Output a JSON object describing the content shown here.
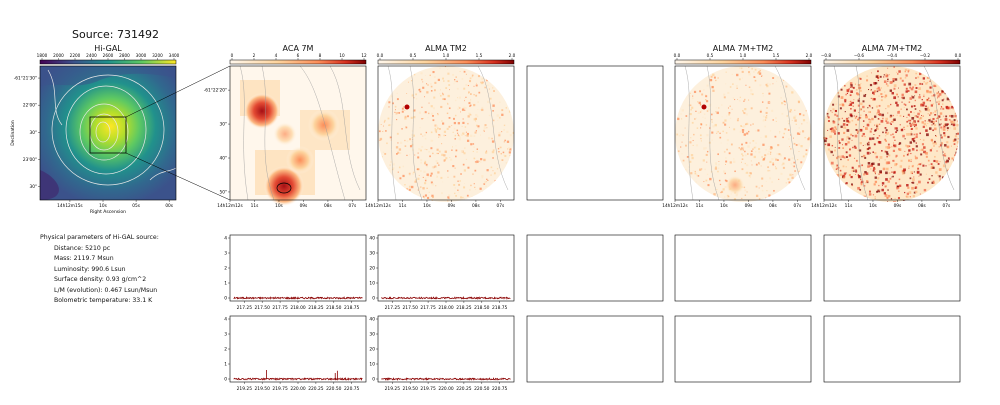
{
  "title": "Source: 731492",
  "panels": {
    "higal": {
      "title": "Hi-GAL",
      "colorbar_ticks": [
        "1800",
        "2000",
        "2200",
        "2400",
        "2600",
        "2800",
        "3000",
        "3200",
        "3400"
      ],
      "xlabel": "Right Ascension",
      "ylabel": "Declination",
      "x_ticks": [
        "14h12m15s",
        "10s",
        "05s",
        "00s"
      ],
      "y_ticks": [
        "-61°21'30\"",
        "22'00\"",
        "30\"",
        "23'00\"",
        "30\""
      ]
    },
    "aca7m": {
      "title": "ACA 7M",
      "colorbar_ticks": [
        "0",
        "2",
        "4",
        "6",
        "8",
        "10",
        "12"
      ],
      "x_ticks": [
        "14h12m12s",
        "11s",
        "10s",
        "09s",
        "08s",
        "07s"
      ],
      "y_ticks": [
        "-61°22'20\"",
        "30\"",
        "40\"",
        "50\""
      ]
    },
    "almatm2": {
      "title": "ALMA TM2",
      "colorbar_ticks": [
        "0.0",
        "0.5",
        "1.0",
        "1.5",
        "2.0"
      ],
      "x_ticks": [
        "14h12m12s",
        "11s",
        "10s",
        "09s",
        "08s",
        "07s"
      ]
    },
    "alma7mtm2": {
      "title": "ALMA 7M+TM2",
      "colorbar_ticks": [
        "0.0",
        "0.5",
        "1.0",
        "1.5",
        "2.0"
      ],
      "x_ticks": [
        "14h12m12s",
        "11s",
        "10s",
        "09s",
        "08s",
        "07s"
      ]
    },
    "alma7mtm2b": {
      "title": "ALMA 7M+TM2",
      "colorbar_ticks": [
        "−0.8",
        "−0.6",
        "−0.4",
        "−0.2",
        "0.0"
      ],
      "x_ticks": [
        "14h12m12s",
        "11s",
        "10s",
        "09s",
        "08s",
        "07s"
      ]
    }
  },
  "params": {
    "heading": "Physical parameters of Hi-GAL source:",
    "lines": [
      "Distance: 5210 pc",
      "Mass: 2119.7 Msun",
      "Luminosity: 990.6 Lsun",
      "Surface density: 0.93 g/cm^2",
      "L/M (evolution): 0.467 Lsun/Msun",
      "Bolometric temperature: 33.1 K"
    ]
  },
  "chart_data": [
    {
      "type": "line",
      "panel": "spectrum-aca-row1",
      "x_ticks": [
        "217.25",
        "217.50",
        "217.75",
        "218.00",
        "218.25",
        "218.50",
        "218.75"
      ],
      "y_ticks": [
        "0",
        "1",
        "2",
        "3",
        "4"
      ],
      "xlim": [
        217.05,
        218.95
      ],
      "ylim": [
        -0.2,
        4.2
      ],
      "baseline": 0.0,
      "spikes": []
    },
    {
      "type": "line",
      "panel": "spectrum-tm2-row1",
      "x_ticks": [
        "217.25",
        "217.50",
        "217.75",
        "218.00",
        "218.25",
        "218.50",
        "218.75"
      ],
      "y_ticks": [
        "0",
        "10",
        "20",
        "30",
        "40"
      ],
      "xlim": [
        217.05,
        218.95
      ],
      "ylim": [
        -2,
        42
      ],
      "baseline": 0.0,
      "spikes": []
    },
    {
      "type": "line",
      "panel": "spectrum-aca-row2",
      "x_ticks": [
        "219.25",
        "219.50",
        "219.75",
        "220.00",
        "220.25",
        "220.50",
        "220.75"
      ],
      "y_ticks": [
        "0",
        "1",
        "2",
        "3",
        "4"
      ],
      "xlim": [
        219.05,
        220.95
      ],
      "ylim": [
        -0.2,
        4.2
      ],
      "baseline": 0.0,
      "spikes": [
        [
          219.56,
          0.6
        ],
        [
          220.52,
          0.4
        ],
        [
          220.55,
          0.55
        ]
      ]
    },
    {
      "type": "line",
      "panel": "spectrum-tm2-row2",
      "x_ticks": [
        "219.25",
        "219.50",
        "219.75",
        "220.00",
        "220.25",
        "220.50",
        "220.75"
      ],
      "y_ticks": [
        "0",
        "10",
        "20",
        "30",
        "40"
      ],
      "xlim": [
        219.05,
        220.95
      ],
      "ylim": [
        -2,
        42
      ],
      "baseline": 0.0,
      "spikes": []
    }
  ]
}
